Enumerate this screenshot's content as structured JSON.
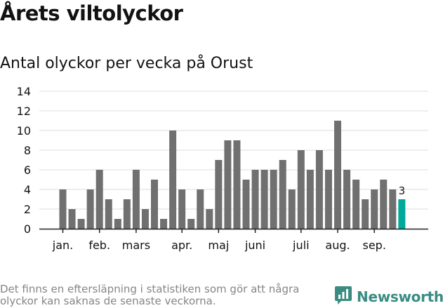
{
  "header": {
    "title": "Årets viltolyckor",
    "subtitle": "Antal olyckor per vecka på Orust"
  },
  "footer": {
    "note": "Det finns en eftersläpning i statistiken som gör att några olyckor kan saknas de senaste veckorna.",
    "brand": "Newsworthy"
  },
  "colors": {
    "bar": "#707070",
    "highlight": "#00a99a",
    "brand": "#3a8c83",
    "grid": "#dddddd",
    "axis": "#222222",
    "text": "#121212"
  },
  "chart_data": {
    "type": "bar",
    "title": "Antal olyckor per vecka på Orust",
    "xlabel": "",
    "ylabel": "",
    "ylim": [
      0,
      14
    ],
    "yticks": [
      0,
      2,
      4,
      6,
      8,
      10,
      12,
      14
    ],
    "grid": true,
    "values": [
      4,
      2,
      1,
      4,
      6,
      3,
      1,
      3,
      6,
      2,
      5,
      1,
      10,
      4,
      1,
      4,
      2,
      7,
      9,
      9,
      5,
      6,
      6,
      6,
      7,
      4,
      8,
      6,
      8,
      6,
      11,
      6,
      5,
      3,
      4,
      5,
      4,
      3
    ],
    "highlight_index": 37,
    "highlight_label": "3",
    "month_labels": [
      {
        "label": "jan.",
        "bar": 0
      },
      {
        "label": "feb.",
        "bar": 4
      },
      {
        "label": "mars",
        "bar": 8
      },
      {
        "label": "apr.",
        "bar": 13
      },
      {
        "label": "maj",
        "bar": 17
      },
      {
        "label": "juni",
        "bar": 21
      },
      {
        "label": "juli",
        "bar": 26
      },
      {
        "label": "aug.",
        "bar": 30
      },
      {
        "label": "sep.",
        "bar": 34
      }
    ]
  }
}
